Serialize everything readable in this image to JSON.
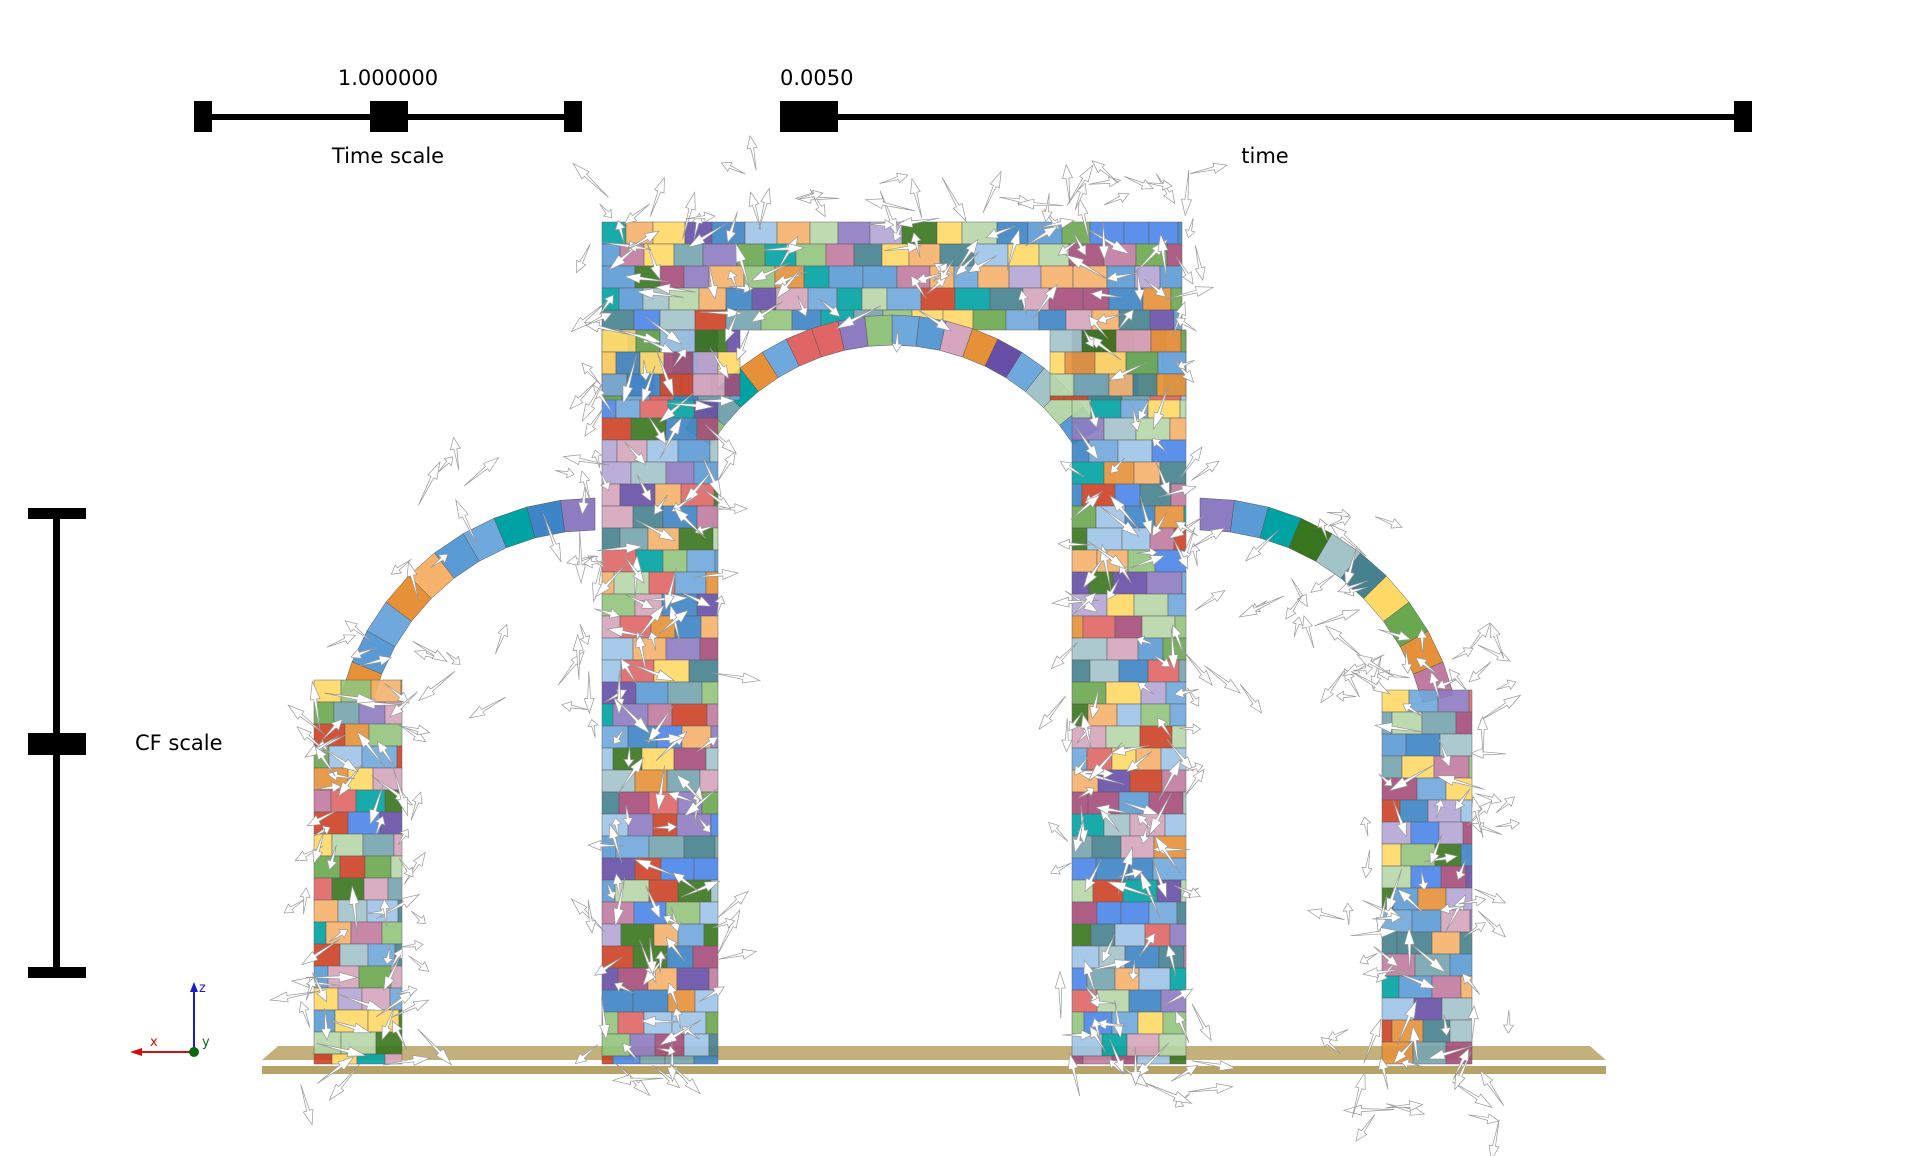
{
  "scales": {
    "time_scale": {
      "value": "1.000000",
      "caption": "Time scale"
    },
    "time": {
      "value": "0.0050",
      "caption": "time"
    },
    "cf_scale": {
      "caption": "CF scale"
    }
  },
  "axes_triad": {
    "x": "x",
    "y": "y",
    "z": "z",
    "x_color": "#d01010",
    "y_color": "#0a6a0a",
    "z_color": "#1a1ad0"
  },
  "colors": {
    "ground": "#b7a267",
    "arrow": "#ffffff",
    "bar": "#000000"
  },
  "icons": [
    "axes-triad-icon"
  ]
}
